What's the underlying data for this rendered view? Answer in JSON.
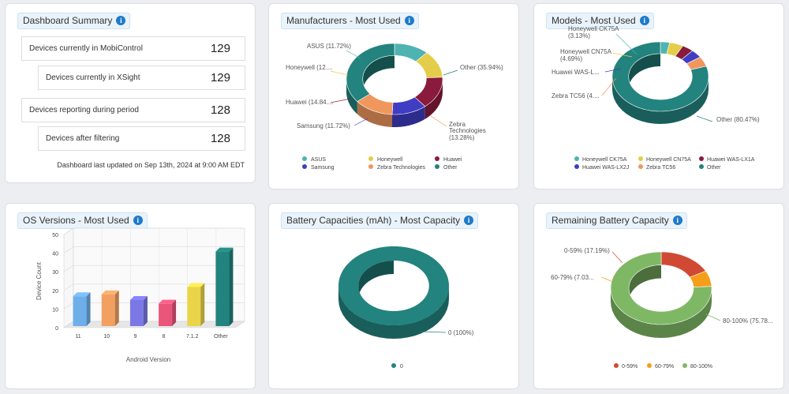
{
  "summary": {
    "title": "Dashboard Summary",
    "rows": [
      {
        "label": "Devices currently in MobiControl",
        "value": "129"
      },
      {
        "label": "Devices currently in XSight",
        "value": "129"
      },
      {
        "label": "Devices reporting during period",
        "value": "128"
      },
      {
        "label": "Devices after filtering",
        "value": "128"
      }
    ],
    "updated": "Dashboard last updated on Sep 13th, 2024 at 9:00 AM EDT"
  },
  "manufacturers": {
    "title": "Manufacturers - Most Used",
    "labels": [
      "ASUS (11.72%)",
      "Honeywell (12....",
      "Huawei (14.84....",
      "Samsung (11.72%)",
      "Zebra",
      "Technologies",
      "(13.28%)",
      "Other (35.94%)"
    ],
    "legend": [
      "ASUS",
      "Honeywell",
      "Huawei",
      "Samsung",
      "Zebra Technologies",
      "Other"
    ]
  },
  "models": {
    "title": "Models - Most Used",
    "labels": [
      "Honeywell CK75A",
      "(3.13%)",
      "Honeywell CN75A",
      "(4.69%)",
      "Huawei WAS-L...",
      "Zebra TC56 (4....",
      "Other (80.47%)"
    ],
    "legend": [
      "Honeywell CK75A",
      "Honeywell CN75A",
      "Huawei WAS-LX1A",
      "Huawei WAS-LX2J",
      "Zebra TC56",
      "Other"
    ]
  },
  "os": {
    "title": "OS Versions - Most Used"
  },
  "battery_cap": {
    "title": "Battery Capacities (mAh) - Most Capacity",
    "labels": [
      "0 (100%)"
    ],
    "legend": [
      "0"
    ]
  },
  "battery_rem": {
    "title": "Remaining Battery Capacity",
    "labels": [
      "0-59% (17.19%)",
      "60-79% (7.03...",
      "80-100% (75.78..."
    ],
    "legend": [
      "0-59%",
      "60-79%",
      "80-100%"
    ]
  },
  "chart_data": [
    {
      "type": "pie",
      "title": "Manufacturers - Most Used",
      "categories": [
        "ASUS",
        "Honeywell",
        "Huawei",
        "Samsung",
        "Zebra Technologies",
        "Other"
      ],
      "values": [
        11.72,
        12.5,
        14.84,
        11.72,
        13.28,
        35.94
      ],
      "colors": [
        "#4fb3b1",
        "#e4cd49",
        "#8a1b3c",
        "#3f3dc4",
        "#f0975e",
        "#23837e"
      ],
      "legend": "bottom"
    },
    {
      "type": "pie",
      "title": "Models - Most Used",
      "categories": [
        "Honeywell CK75A",
        "Honeywell CN75A",
        "Huawei WAS-LX1A",
        "Huawei WAS-LX2J",
        "Zebra TC56",
        "Other"
      ],
      "values": [
        3.13,
        4.69,
        3.91,
        3.91,
        4.69,
        80.47
      ],
      "colors": [
        "#4fb3b1",
        "#e4cd49",
        "#8a1b3c",
        "#3f3dc4",
        "#f0975e",
        "#23837e"
      ],
      "legend": "bottom"
    },
    {
      "type": "bar",
      "title": "OS Versions - Most Used",
      "xlabel": "Android Version",
      "ylabel": "Device Count",
      "categories": [
        "11",
        "10",
        "9",
        "8",
        "7.1.2",
        "Other"
      ],
      "values": [
        16,
        17,
        14,
        12,
        21,
        40
      ],
      "colors": [
        "#6eaee9",
        "#f1a061",
        "#7b78e6",
        "#e9567a",
        "#ead54a",
        "#23837e"
      ],
      "ylim": [
        0,
        50
      ],
      "yticks": [
        "0",
        "10",
        "20",
        "30",
        "40",
        "50"
      ],
      "grid": true
    },
    {
      "type": "pie",
      "title": "Battery Capacities (mAh) - Most Capacity",
      "categories": [
        "0"
      ],
      "values": [
        100
      ],
      "colors": [
        "#23837e"
      ],
      "legend": "bottom"
    },
    {
      "type": "pie",
      "title": "Remaining Battery Capacity",
      "categories": [
        "0-59%",
        "60-79%",
        "80-100%"
      ],
      "values": [
        17.19,
        7.03,
        75.78
      ],
      "colors": [
        "#d04a33",
        "#f59e19",
        "#7fb865"
      ],
      "legend": "bottom"
    }
  ]
}
